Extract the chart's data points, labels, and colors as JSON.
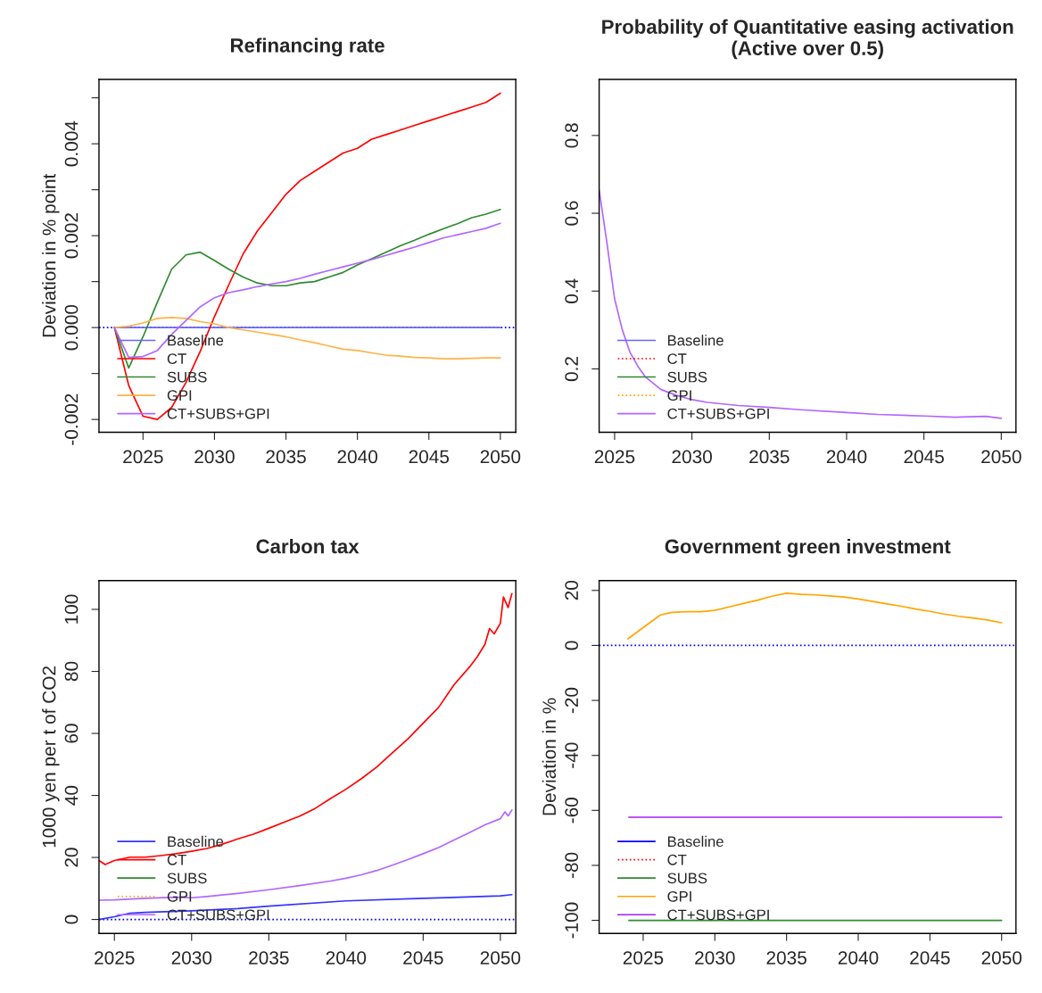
{
  "chart_data": [
    {
      "type": "line",
      "title": "Refinancing rate",
      "ylabel": "Deviation in % point",
      "xlim": [
        2021.92,
        2051.08
      ],
      "xticks": [
        2025,
        2030,
        2035,
        2040,
        2045,
        2050
      ],
      "ylim": [
        -0.00228,
        0.0054
      ],
      "yticks": [
        {
          "value": -0.002,
          "label": "-0.002"
        },
        {
          "value": -0.001,
          "label": null
        },
        {
          "value": 0,
          "label": "0.000"
        },
        {
          "value": 0.001,
          "label": null
        },
        {
          "value": 0.002,
          "label": "0.002"
        },
        {
          "value": 0.003,
          "label": null
        },
        {
          "value": 0.004,
          "label": "0.004"
        },
        {
          "value": 0.005,
          "label": null
        }
      ],
      "legend": "bottom left",
      "grid": false,
      "ref_lines": [
        {
          "axis": "y",
          "value": 0,
          "color": "#0000ff",
          "line_style": "dotted"
        }
      ],
      "series": [
        {
          "name": "Baseline",
          "color": "#6666ff",
          "line_style": "solid",
          "x": [
            2023,
            2050
          ],
          "values": [
            0,
            0
          ]
        },
        {
          "name": "CT",
          "color": "#ff0000",
          "line_style": "solid",
          "x": [
            2023,
            2024,
            2025,
            2026,
            2027,
            2028,
            2029,
            2030,
            2031,
            2032,
            2033,
            2034,
            2035,
            2036,
            2037,
            2038,
            2039,
            2040,
            2041,
            2042,
            2043,
            2044,
            2045,
            2046,
            2047,
            2048,
            2049,
            2050
          ],
          "values": [
            0,
            -0.00126,
            -0.00193,
            -0.002,
            -0.00174,
            -0.0012,
            -0.00052,
            0.00024,
            0.00093,
            0.0016,
            0.0021,
            0.0025,
            0.0029,
            0.0032,
            0.0034,
            0.0036,
            0.0038,
            0.0039,
            0.0041,
            0.0042,
            0.0043,
            0.0044,
            0.0045,
            0.0046,
            0.0047,
            0.0048,
            0.0049,
            0.0051
          ]
        },
        {
          "name": "SUBS",
          "color": "#2e8b2e",
          "line_style": "solid",
          "x": [
            2023,
            2024,
            2025,
            2026,
            2027,
            2028,
            2029,
            2030,
            2031,
            2032,
            2033,
            2034,
            2035,
            2036,
            2037,
            2038,
            2039,
            2040,
            2041,
            2042,
            2043,
            2044,
            2045,
            2046,
            2047,
            2048,
            2049,
            2050
          ],
          "values": [
            0,
            -0.00088,
            -0.0002,
            0.00055,
            0.00127,
            0.00158,
            0.00164,
            0.00146,
            0.00127,
            0.0011,
            0.00097,
            0.00091,
            0.00091,
            0.00097,
            0.001,
            0.0011,
            0.0012,
            0.00136,
            0.0015,
            0.00164,
            0.00178,
            0.0019,
            0.00203,
            0.00215,
            0.00226,
            0.00239,
            0.00247,
            0.00257
          ]
        },
        {
          "name": "GPI",
          "color": "#ffb347",
          "line_style": "solid",
          "x": [
            2023,
            2024,
            2025,
            2026,
            2027,
            2028,
            2029,
            2030,
            2031,
            2032,
            2033,
            2034,
            2035,
            2036,
            2037,
            2038,
            2039,
            2040,
            2041,
            2042,
            2043,
            2044,
            2045,
            2046,
            2047,
            2048,
            2049,
            2050
          ],
          "values": [
            0,
            3e-05,
            0.0001,
            0.0002,
            0.00022,
            0.0002,
            0.00013,
            8e-05,
            0,
            -5e-05,
            -0.0001,
            -0.00015,
            -0.0002,
            -0.00027,
            -0.00033,
            -0.0004,
            -0.00047,
            -0.0005,
            -0.00055,
            -0.0006,
            -0.00062,
            -0.00065,
            -0.00066,
            -0.00068,
            -0.00068,
            -0.00067,
            -0.00066,
            -0.00066
          ]
        },
        {
          "name": "CT+SUBS+GPI",
          "color": "#b266ff",
          "line_style": "solid",
          "x": [
            2023,
            2024,
            2025,
            2026,
            2027,
            2028,
            2029,
            2030,
            2031,
            2032,
            2033,
            2034,
            2035,
            2036,
            2037,
            2038,
            2039,
            2040,
            2041,
            2042,
            2043,
            2044,
            2045,
            2046,
            2047,
            2048,
            2049,
            2050
          ],
          "values": [
            0,
            -0.00065,
            -0.00063,
            -0.0005,
            -0.00015,
            0.00015,
            0.00045,
            0.00065,
            0.00076,
            0.00082,
            0.00089,
            0.00095,
            0.001,
            0.00107,
            0.00116,
            0.00124,
            0.00132,
            0.0014,
            0.00148,
            0.00157,
            0.00166,
            0.00175,
            0.00185,
            0.00195,
            0.00202,
            0.00209,
            0.00216,
            0.00227
          ]
        }
      ]
    },
    {
      "type": "line",
      "title": "Probability of Quantitative easing activation\n(Active over 0.5)",
      "xlim": [
        2024,
        2050.95
      ],
      "xticks": [
        2025,
        2030,
        2035,
        2040,
        2045,
        2050
      ],
      "ylim": [
        0.037,
        0.944
      ],
      "yticks": [
        {
          "value": 0.2,
          "label": "0.2"
        },
        {
          "value": 0.4,
          "label": "0.4"
        },
        {
          "value": 0.6,
          "label": "0.6"
        },
        {
          "value": 0.8,
          "label": "0.8"
        }
      ],
      "legend": "bottom left",
      "grid": false,
      "series": [
        {
          "name": "Baseline",
          "color": "#6666ff",
          "line_style": "solid"
        },
        {
          "name": "CT",
          "color": "#ff0000",
          "line_style": "dotted"
        },
        {
          "name": "SUBS",
          "color": "#2e8b2e",
          "line_style": "solid"
        },
        {
          "name": "GPI",
          "color": "#ffa500",
          "line_style": "dotted"
        },
        {
          "name": "CT+SUBS+GPI",
          "color": "#b266ff",
          "line_style": "solid",
          "x": [
            2024,
            2024.5,
            2025,
            2025.5,
            2026,
            2026.5,
            2027,
            2027.5,
            2028,
            2029,
            2030,
            2031,
            2032,
            2033,
            2035,
            2037,
            2040,
            2042,
            2045,
            2047,
            2049,
            2050
          ],
          "values": [
            0.66,
            0.525,
            0.38,
            0.3,
            0.242,
            0.207,
            0.179,
            0.163,
            0.147,
            0.132,
            0.121,
            0.114,
            0.11,
            0.106,
            0.101,
            0.095,
            0.088,
            0.083,
            0.079,
            0.076,
            0.078,
            0.073
          ]
        }
      ]
    },
    {
      "type": "line",
      "title": "Carbon tax",
      "ylabel": "1000 yen per t of CO2",
      "xlim": [
        2024,
        2051
      ],
      "xticks": [
        2025,
        2030,
        2035,
        2040,
        2045,
        2050
      ],
      "ylim": [
        -4.5,
        109.3
      ],
      "yticks": [
        0,
        20,
        40,
        60,
        80,
        100
      ],
      "legend": "bottom left",
      "grid": false,
      "ref_lines": [
        {
          "axis": "y",
          "value": 0,
          "color": "#0000ff",
          "line_style": "dotted"
        }
      ],
      "series": [
        {
          "name": "Baseline",
          "color": "#3333ff",
          "line_style": "solid",
          "x": [
            2024,
            2025,
            2026,
            2027,
            2030,
            2033,
            2035,
            2040,
            2045,
            2050,
            2050.75
          ],
          "values": [
            0,
            0.9,
            2.0,
            2.3,
            2.8,
            3.5,
            4.3,
            6.0,
            6.8,
            7.6,
            8.0
          ]
        },
        {
          "name": "CT",
          "color": "#ff0000",
          "line_style": "solid",
          "x": [
            2024,
            2024.4,
            2025,
            2026,
            2027,
            2028,
            2029,
            2030,
            2031,
            2032,
            2033,
            2034,
            2035,
            2036,
            2037,
            2038,
            2039,
            2040,
            2041,
            2042,
            2043,
            2044,
            2045,
            2046,
            2047,
            2048,
            2048.5,
            2049,
            2049.3,
            2049.6,
            2050,
            2050.2,
            2050.5,
            2050.75
          ],
          "values": [
            19.0,
            17.7,
            19.0,
            20.1,
            20.1,
            20.6,
            21.2,
            22.0,
            22.9,
            24.3,
            26.0,
            27.5,
            29.4,
            31.4,
            33.3,
            35.8,
            39.0,
            42.0,
            45.4,
            49.2,
            53.7,
            58.2,
            63.3,
            68.4,
            75.7,
            81.4,
            84.7,
            88.7,
            93.8,
            92.1,
            95.5,
            104,
            100.6,
            105.1
          ]
        },
        {
          "name": "SUBS",
          "color": "#2e8b2e",
          "line_style": "solid"
        },
        {
          "name": "GPI",
          "color": "#ffa500",
          "line_style": "dotted"
        },
        {
          "name": "CT+SUBS+GPI",
          "color": "#b266ff",
          "line_style": "solid",
          "x": [
            2024,
            2025,
            2027,
            2029,
            2030,
            2031,
            2033,
            2035,
            2037,
            2039,
            2040,
            2041,
            2042,
            2043,
            2044,
            2045,
            2046,
            2047,
            2048,
            2049,
            2050,
            2050.3,
            2050.5,
            2050.75
          ],
          "values": [
            6.2,
            6.3,
            6.8,
            7.2,
            7.0,
            7.4,
            8.4,
            9.6,
            10.9,
            12.4,
            13.3,
            14.4,
            15.8,
            17.5,
            19.3,
            21.2,
            23.2,
            25.6,
            28.0,
            30.5,
            32.5,
            34.7,
            33.4,
            35.3
          ]
        }
      ]
    },
    {
      "type": "line",
      "title": "Government green investment",
      "ylabel": "Deviation in %",
      "xlim": [
        2021.93,
        2051.0
      ],
      "xticks": [
        2025,
        2030,
        2035,
        2040,
        2045,
        2050
      ],
      "ylim": [
        -104.75,
        23.6
      ],
      "yticks": [
        -100,
        -80,
        -60,
        -40,
        -20,
        0,
        20
      ],
      "legend": "bottom left",
      "grid": false,
      "ref_lines": [
        {
          "axis": "y",
          "value": 0,
          "color": "#0000ff",
          "line_style": "dotted"
        }
      ],
      "series": [
        {
          "name": "Baseline",
          "color": "#0000ff",
          "line_style": "solid"
        },
        {
          "name": "CT",
          "color": "#ff0000",
          "line_style": "dotted"
        },
        {
          "name": "SUBS",
          "color": "#2e8b2e",
          "line_style": "solid",
          "x": [
            2024,
            2050
          ],
          "values": [
            -100,
            -100
          ]
        },
        {
          "name": "GPI",
          "color": "#ffa500",
          "line_style": "solid",
          "x": [
            2023.94,
            2026.2,
            2027,
            2028,
            2029,
            2030,
            2031,
            2032,
            2033,
            2034,
            2035,
            2036,
            2037,
            2038,
            2039,
            2040,
            2041,
            2042,
            2043,
            2044,
            2045,
            2046,
            2047,
            2048,
            2049,
            2050
          ],
          "values": [
            2.4,
            11.1,
            12.0,
            12.25,
            12.25,
            12.75,
            14.0,
            15.25,
            16.5,
            17.9,
            19.0,
            18.6,
            18.4,
            18.0,
            17.6,
            16.9,
            16.0,
            15.1,
            14.25,
            13.25,
            12.4,
            11.4,
            10.6,
            10.0,
            9.25,
            8.25
          ]
        },
        {
          "name": "CT+SUBS+GPI",
          "color": "#a020f0",
          "line_style": "solid",
          "x": [
            2024,
            2050
          ],
          "values": [
            -62.5,
            -62.5
          ]
        }
      ]
    }
  ]
}
